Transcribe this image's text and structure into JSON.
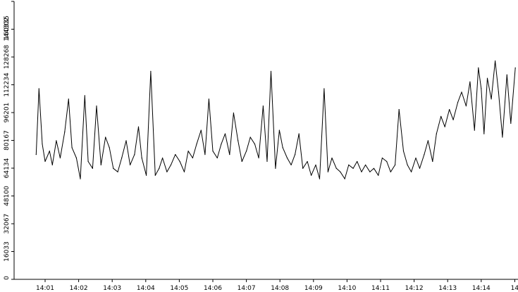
{
  "chart_data": {
    "type": "line",
    "title": "",
    "xlabel": "",
    "ylabel": "",
    "grid": false,
    "legend": "none",
    "line_color": "#000000",
    "axis_color": "#000000",
    "background": "#ffffff",
    "x_tick_labels": [
      "14:01",
      "14:02",
      "14:03",
      "14:04",
      "14:05",
      "14:06",
      "14:07",
      "14:08",
      "14:09",
      "14:10",
      "14:11",
      "14:12",
      "14:13",
      "14:14",
      "14"
    ],
    "y_tick_labels": [
      "0",
      "16033",
      "32067",
      "48100",
      "64134",
      "80167",
      "96201",
      "112234",
      "128268",
      "144302",
      "160335"
    ],
    "ylim": [
      0,
      160335
    ],
    "x": [
      "14:00:44",
      "14:00:49",
      "14:00:55",
      "14:01:00",
      "14:01:08",
      "14:01:13",
      "14:01:20",
      "14:01:27",
      "14:01:35",
      "14:01:42",
      "14:01:48",
      "14:01:56",
      "14:02:03",
      "14:02:11",
      "14:02:17",
      "14:02:25",
      "14:02:32",
      "14:02:40",
      "14:02:48",
      "14:02:55",
      "14:03:02",
      "14:03:10",
      "14:03:17",
      "14:03:25",
      "14:03:32",
      "14:03:40",
      "14:03:47",
      "14:03:53",
      "14:04:01",
      "14:04:09",
      "14:04:17",
      "14:04:24",
      "14:04:30",
      "14:04:38",
      "14:04:45",
      "14:04:53",
      "14:05:01",
      "14:05:09",
      "14:05:16",
      "14:05:24",
      "14:05:31",
      "14:05:39",
      "14:05:46",
      "14:05:53",
      "14:06:00",
      "14:06:08",
      "14:06:15",
      "14:06:22",
      "14:06:30",
      "14:06:37",
      "14:06:45",
      "14:06:52",
      "14:07:00",
      "14:07:07",
      "14:07:15",
      "14:07:22",
      "14:07:30",
      "14:07:37",
      "14:07:44",
      "14:07:52",
      "14:07:59",
      "14:08:05",
      "14:08:13",
      "14:08:20",
      "14:08:27",
      "14:08:34",
      "14:08:41",
      "14:08:49",
      "14:08:56",
      "14:09:04",
      "14:09:11",
      "14:09:19",
      "14:09:26",
      "14:09:33",
      "14:09:41",
      "14:09:48",
      "14:09:56",
      "14:10:03",
      "14:10:11",
      "14:10:18",
      "14:10:26",
      "14:10:33",
      "14:10:41",
      "14:10:48",
      "14:10:56",
      "14:11:03",
      "14:11:11",
      "14:11:18",
      "14:11:26",
      "14:11:33",
      "14:11:41",
      "14:11:48",
      "14:11:55",
      "14:12:03",
      "14:12:10",
      "14:12:18",
      "14:12:25",
      "14:12:33",
      "14:12:40",
      "14:12:48",
      "14:12:55",
      "14:13:03",
      "14:13:10",
      "14:13:18",
      "14:13:25",
      "14:13:33",
      "14:13:40",
      "14:13:48",
      "14:13:55",
      "14:14:00",
      "14:14:05",
      "14:14:11",
      "14:14:18",
      "14:14:25",
      "14:14:31",
      "14:14:38",
      "14:14:46",
      "14:14:53",
      "14:15:01"
    ],
    "values": [
      72000,
      110000,
      78000,
      68000,
      74000,
      66000,
      80000,
      70000,
      85000,
      104000,
      76000,
      70000,
      58000,
      106000,
      68000,
      64000,
      100000,
      66000,
      82000,
      76000,
      64000,
      62000,
      70000,
      80000,
      66000,
      72000,
      88000,
      70000,
      60000,
      120000,
      60000,
      64000,
      70000,
      62000,
      66000,
      72000,
      68000,
      62000,
      74000,
      70000,
      78000,
      86000,
      72000,
      104000,
      74000,
      70000,
      78000,
      84000,
      72000,
      96000,
      80000,
      68000,
      74000,
      82000,
      78000,
      70000,
      100000,
      68000,
      120000,
      64000,
      86000,
      76000,
      70000,
      66000,
      72000,
      84000,
      64000,
      68000,
      60000,
      66000,
      58000,
      110000,
      62000,
      70000,
      64000,
      62000,
      58000,
      66000,
      64000,
      68000,
      62000,
      66000,
      62000,
      64000,
      60000,
      70000,
      68000,
      62000,
      66000,
      98000,
      74000,
      66000,
      62000,
      70000,
      64000,
      72000,
      80000,
      68000,
      84000,
      94000,
      88000,
      98000,
      92000,
      102000,
      108000,
      100000,
      114000,
      86000,
      122000,
      110000,
      84000,
      116000,
      104000,
      126000,
      108000,
      82000,
      118000,
      90000,
      122000
    ]
  }
}
